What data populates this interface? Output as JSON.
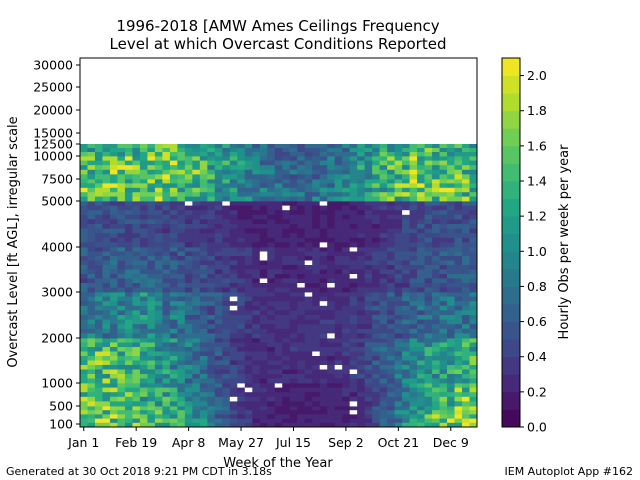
{
  "chart_data": {
    "type": "heatmap",
    "title": "1996-2018 [AMW Ames Ceilings Frequency",
    "subtitle": "Level at which Overcast Conditions Reported",
    "xlabel": "Week of the Year",
    "ylabel": "Overcast Level [ft AGL], irregular scale",
    "x_tick_labels": [
      "Jan 1",
      "Feb 19",
      "Apr 8",
      "May 27",
      "Jul 15",
      "Sep 2",
      "Oct 21",
      "Dec 9"
    ],
    "x_tick_weeks": [
      1,
      8,
      15,
      22,
      29,
      36,
      43,
      50
    ],
    "y_tick_labels": [
      "100",
      "500",
      "1000",
      "2000",
      "3000",
      "4000",
      "5000",
      "7500",
      "10000",
      "12500",
      "15000",
      "20000",
      "25000",
      "30000"
    ],
    "y_tick_values": [
      100,
      500,
      1000,
      2000,
      3000,
      4000,
      5000,
      7500,
      10000,
      12500,
      15000,
      20000,
      25000,
      30000
    ],
    "x_range_weeks": [
      1,
      53
    ],
    "colorbar": {
      "label": "Hourly Obs per week per year",
      "range": [
        0.0,
        2.1
      ],
      "tick_labels": [
        "0.0",
        "0.2",
        "0.4",
        "0.6",
        "0.8",
        "1.0",
        "1.2",
        "1.4",
        "1.6",
        "1.8",
        "2.0"
      ],
      "colormap": "viridis"
    },
    "band_levels": [
      "100-500",
      "500-1000",
      "1000-2000",
      "2000-3000",
      "3000-4000",
      "4000-5000",
      "5000-7500",
      "7500-10000",
      "10000-12500"
    ],
    "band_profiles": {
      "100-500": [
        1.5,
        1.6,
        1.4,
        1.3,
        1.1,
        0.6,
        0.3,
        0.2,
        0.2,
        0.2,
        0.3,
        0.7,
        1.2,
        1.6,
        1.9
      ],
      "500-1000": [
        1.5,
        1.5,
        1.3,
        1.2,
        0.9,
        0.5,
        0.3,
        0.2,
        0.2,
        0.2,
        0.3,
        0.6,
        1.1,
        1.4,
        1.7
      ],
      "1000-2000": [
        1.4,
        1.5,
        1.3,
        1.1,
        0.8,
        0.5,
        0.3,
        0.3,
        0.3,
        0.3,
        0.4,
        0.7,
        1.0,
        1.2,
        1.3
      ],
      "2000-3000": [
        0.8,
        0.9,
        1.0,
        0.9,
        0.7,
        0.5,
        0.35,
        0.3,
        0.3,
        0.3,
        0.4,
        0.55,
        0.7,
        0.8,
        0.8
      ],
      "3000-4000": [
        0.6,
        0.6,
        0.65,
        0.6,
        0.5,
        0.4,
        0.3,
        0.25,
        0.25,
        0.25,
        0.3,
        0.4,
        0.5,
        0.55,
        0.6
      ],
      "4000-5000": [
        0.5,
        0.5,
        0.5,
        0.45,
        0.4,
        0.3,
        0.22,
        0.2,
        0.2,
        0.2,
        0.25,
        0.35,
        0.45,
        0.5,
        0.5
      ],
      "5000-7500": [
        1.5,
        1.6,
        1.6,
        1.5,
        1.3,
        1.1,
        0.9,
        0.8,
        0.8,
        0.9,
        1.1,
        1.4,
        1.6,
        1.6,
        1.5
      ],
      "7500-10000": [
        1.4,
        1.5,
        1.6,
        1.6,
        1.5,
        1.2,
        0.9,
        0.7,
        0.7,
        0.8,
        1.1,
        1.4,
        1.5,
        1.5,
        1.4
      ],
      "10000-12500": [
        1.2,
        1.3,
        1.4,
        1.5,
        1.4,
        1.1,
        0.8,
        0.6,
        0.6,
        0.7,
        1.0,
        1.3,
        1.4,
        1.3,
        1.2
      ]
    },
    "grid": false
  },
  "footer": {
    "left": "Generated at 30 Oct 2018 9:21 PM CDT in 3.18s",
    "right": "IEM Autoplot App #162"
  }
}
